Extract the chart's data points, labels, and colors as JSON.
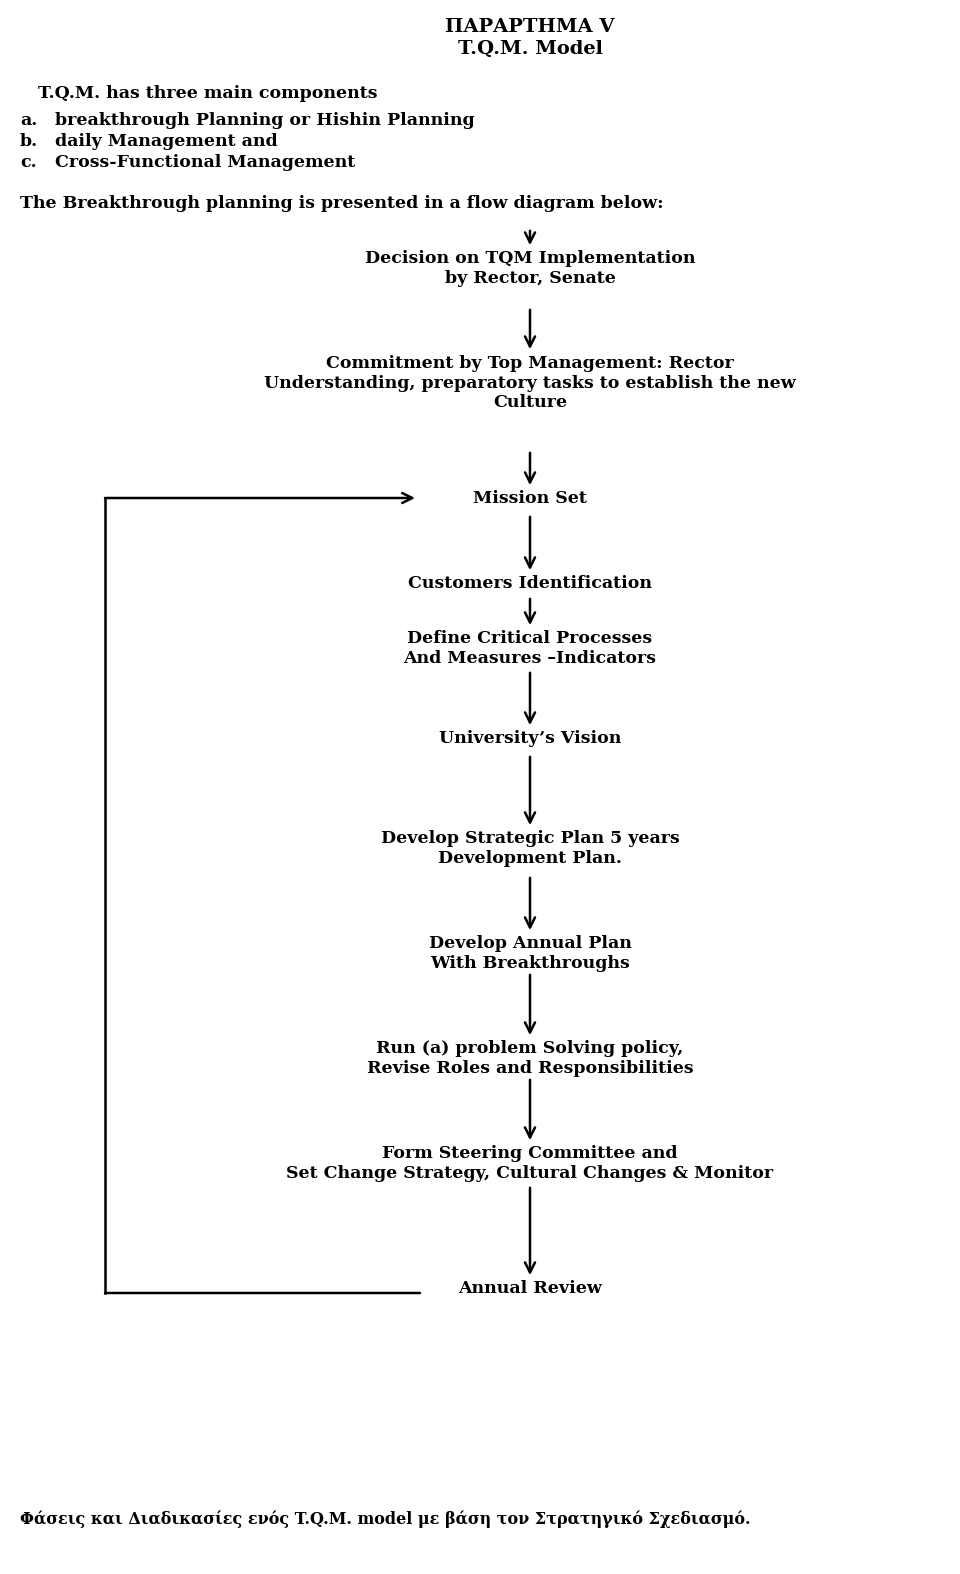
{
  "title1": "ΠΑΡΑΡΤΗΜΑ V",
  "title2": "T.Q.M. Model",
  "intro_line0": "T.Q.M. has three main components",
  "intro_line1a": "a.",
  "intro_line1b": "breakthrough Planning or Hishin Planning",
  "intro_line2a": "b.",
  "intro_line2b": "daily Management and",
  "intro_line3a": "c.",
  "intro_line3b": "Cross-Functional Management",
  "flow_intro": "The Breakthrough planning is presented in a flow diagram below:",
  "node0": "Decision on TQM Implementation\nby Rector, Senate",
  "node1": "Commitment by Top Management: Rector\nUnderstanding, preparatory tasks to establish the new\nCulture",
  "node2": "Mission Set",
  "node3": "Customers Identification",
  "node4": "Define Critical Processes\nAnd Measures –Indicators",
  "node5": "University’s Vision",
  "node6": "Develop Strategic Plan 5 years\nDevelopment Plan.",
  "node7": "Develop Annual Plan\nWith Breakthroughs",
  "node8": "Run (a) problem Solving policy,\nRevise Roles and Responsibilities",
  "node9": "Form Steering Committee and\nSet Change Strategy, Cultural Changes & Monitor",
  "node10": "Annual Review",
  "footer": "Φάσεις και Διαδικασίες ενός T.Q.M. model με βάση τον Στρατηγικό Σχεδιασμό.",
  "bg_color": "#ffffff",
  "text_color": "#000000"
}
